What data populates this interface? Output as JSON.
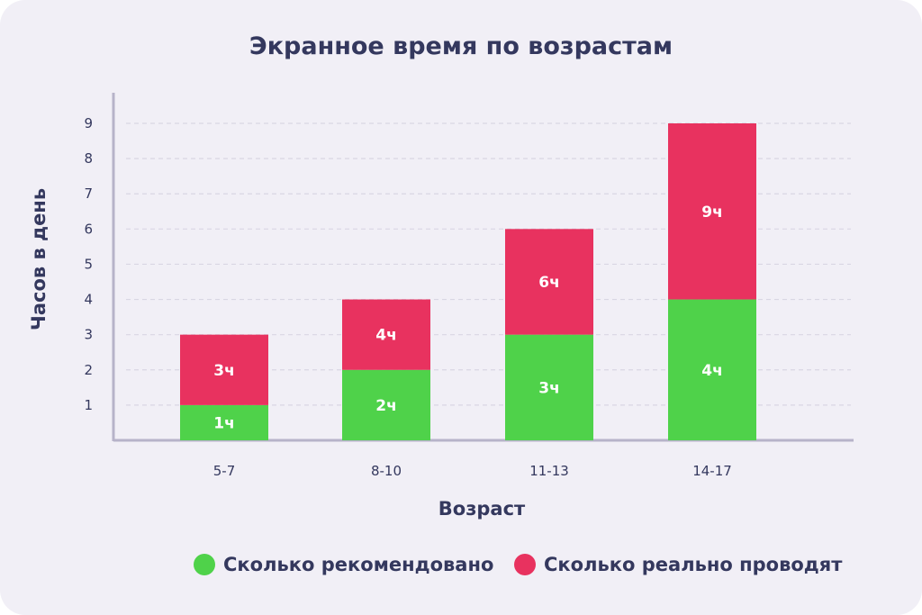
{
  "chart_data": {
    "type": "bar",
    "stacked": true,
    "title": "Экранное время по возрастам",
    "xlabel": "Возраст",
    "ylabel": "Часов в день",
    "categories": [
      "5-7",
      "8-10",
      "11-13",
      "14-17"
    ],
    "y_ticks": [
      "1",
      "2",
      "3",
      "4",
      "5",
      "6",
      "7",
      "8",
      "9"
    ],
    "ylim": [
      0,
      9
    ],
    "grid": true,
    "legend_position": "bottom",
    "series": [
      {
        "name": "Сколько рекомендовано",
        "color": "#4fd24a",
        "values": [
          1,
          2,
          3,
          4
        ],
        "labels": [
          "1ч",
          "2ч",
          "3ч",
          "4ч"
        ]
      },
      {
        "name": "Сколько реально проводят",
        "color": "#e8325f",
        "values": [
          2,
          2,
          3,
          5
        ],
        "labels": [
          "3ч",
          "4ч",
          "6ч",
          "9ч"
        ]
      }
    ]
  },
  "colors": {
    "background": "#f1eff6",
    "text": "#34385e",
    "axis": "#b7b3c9",
    "grid": "#d9d6e3"
  }
}
